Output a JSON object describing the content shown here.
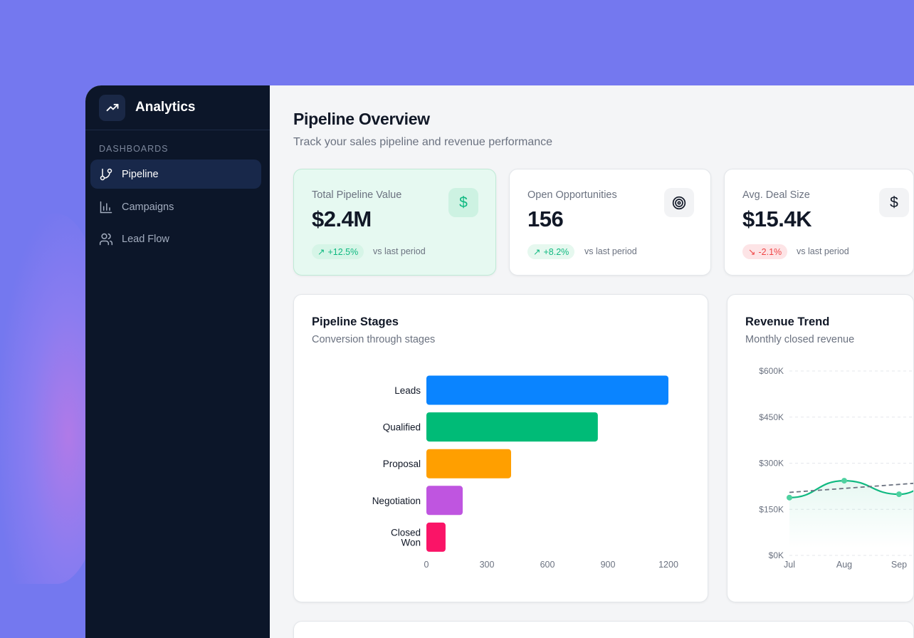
{
  "sidebar": {
    "brand": "Analytics",
    "section": "DASHBOARDS",
    "items": [
      {
        "label": "Pipeline",
        "icon": "git-branch-icon",
        "active": true
      },
      {
        "label": "Campaigns",
        "icon": "bar-chart-icon"
      },
      {
        "label": "Lead Flow",
        "icon": "users-icon"
      }
    ]
  },
  "header": {
    "title": "Pipeline Overview",
    "subtitle": "Track your sales pipeline and revenue performance"
  },
  "kpis": [
    {
      "label": "Total Pipeline Value",
      "value": "$2.4M",
      "change": "+12.5%",
      "trend": "up",
      "compare": "vs last period",
      "icon": "dollar-icon"
    },
    {
      "label": "Open Opportunities",
      "value": "156",
      "change": "+8.2%",
      "trend": "up",
      "compare": "vs last period",
      "icon": "target-icon"
    },
    {
      "label": "Avg. Deal Size",
      "value": "$15.4K",
      "change": "-2.1%",
      "trend": "down",
      "compare": "vs last period",
      "icon": "dollar-icon"
    }
  ],
  "colors": {
    "up": "#10b981",
    "down": "#ef4444",
    "bg": "#7478ef",
    "sidebar": "#0c1629"
  },
  "chart_data": [
    {
      "type": "bar",
      "orientation": "horizontal",
      "title": "Pipeline Stages",
      "subtitle": "Conversion through stages",
      "categories": [
        "Leads",
        "Qualified",
        "Proposal",
        "Negotiation",
        "Closed Won"
      ],
      "values": [
        1200,
        850,
        420,
        180,
        95
      ],
      "colors": [
        "#0a84ff",
        "#00bb77",
        "#ff9f00",
        "#bf55e0",
        "#fa1467"
      ],
      "xticks": [
        0,
        300,
        600,
        900,
        1200
      ],
      "xlim": [
        0,
        1200
      ],
      "grid": false
    },
    {
      "type": "area",
      "title": "Revenue Trend",
      "subtitle": "Monthly closed revenue",
      "categories": [
        "Jul",
        "Aug",
        "Sep"
      ],
      "series": [
        {
          "values": [
            188000,
            243000,
            199000
          ],
          "color": "#10b981"
        }
      ],
      "trendline": {
        "start": 205000,
        "slope_per_month": 13000,
        "color": "#6b7280",
        "style": "dashed"
      },
      "yticks": [
        "$0K",
        "$150K",
        "$300K",
        "$450K",
        "$600K"
      ],
      "ylim": [
        0,
        600000
      ],
      "grid": true
    }
  ]
}
